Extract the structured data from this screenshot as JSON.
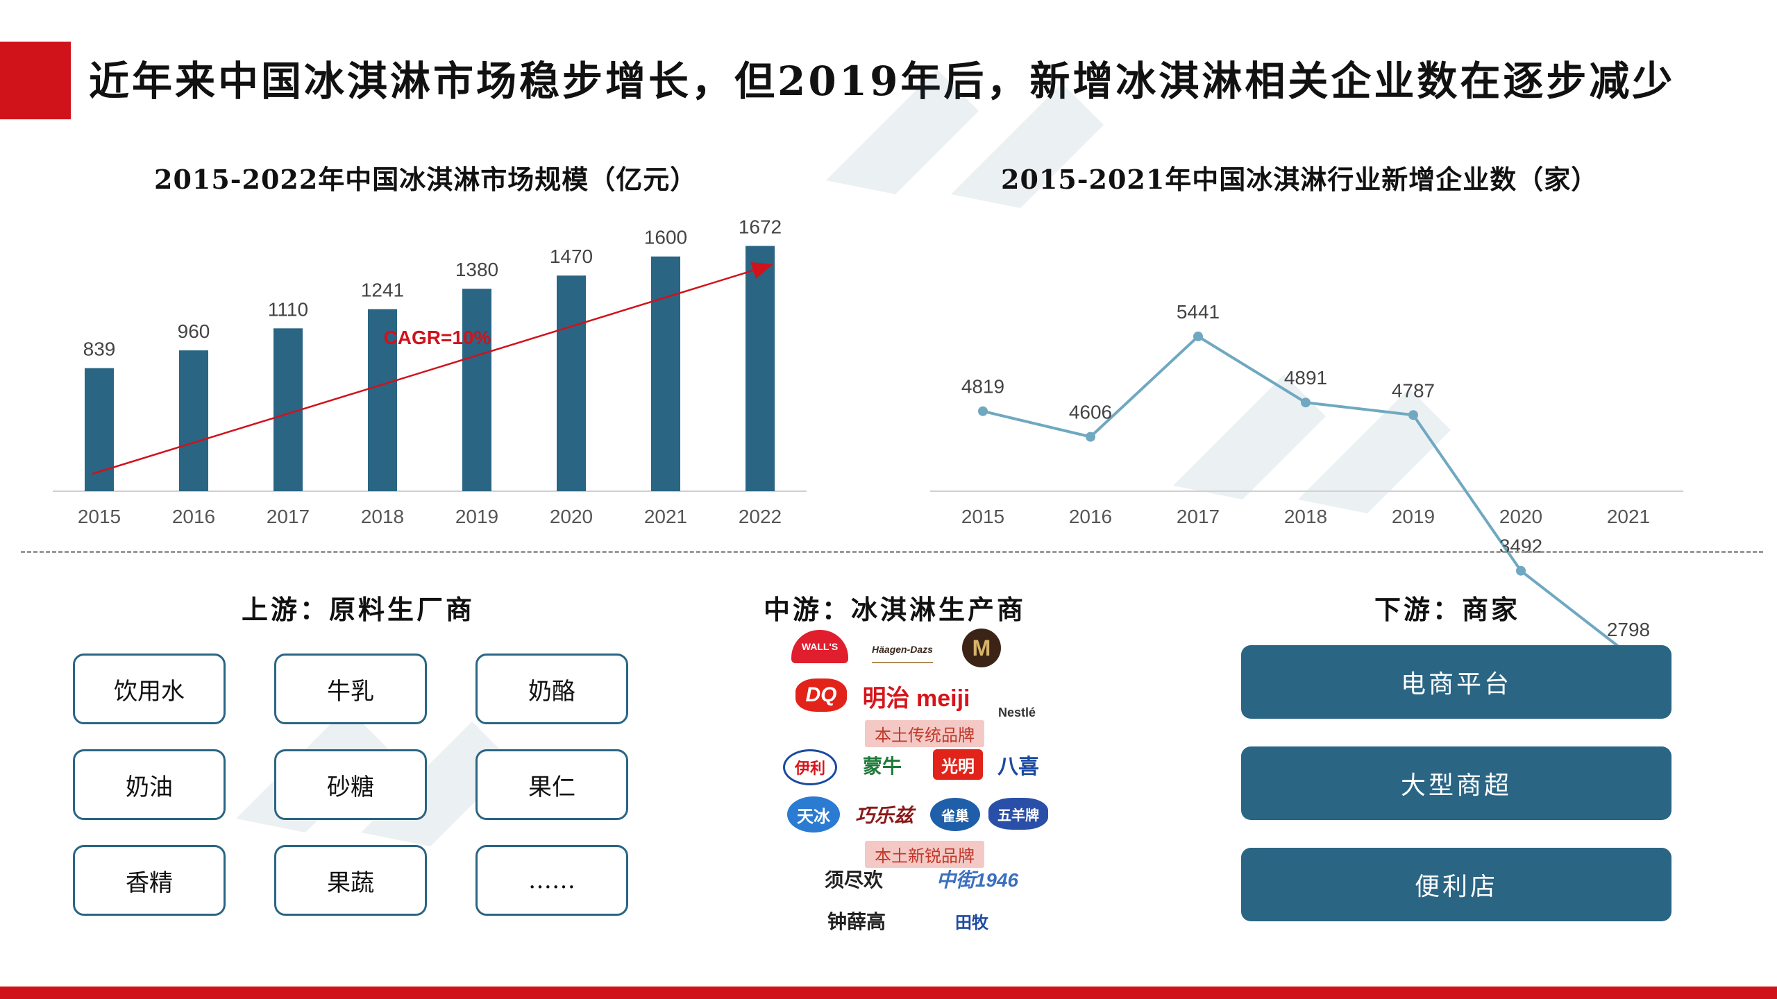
{
  "page": {
    "title": "近年来中国冰淇淋市场稳步增长，但2019年后，新增冰淇淋相关企业数在逐步减少"
  },
  "chart_data": [
    {
      "type": "bar",
      "title": "2015-2022年中国冰淇淋市场规模（亿元）",
      "categories": [
        "2015",
        "2016",
        "2017",
        "2018",
        "2019",
        "2020",
        "2021",
        "2022"
      ],
      "values": [
        839,
        960,
        1110,
        1241,
        1380,
        1470,
        1600,
        1672
      ],
      "annotation": "CAGR=10%",
      "ylim": [
        0,
        1750
      ],
      "color": "#2a6584",
      "annotation_color": "#d0121b"
    },
    {
      "type": "line",
      "title": "2015-2021年中国冰淇淋行业新增企业数（家）",
      "categories": [
        "2015",
        "2016",
        "2017",
        "2018",
        "2019",
        "2020",
        "2021"
      ],
      "values": [
        4819,
        4606,
        5441,
        4891,
        4787,
        3492,
        2798
      ],
      "ylim": [
        0,
        6000
      ],
      "color": "#6fa8c0"
    }
  ],
  "sections": {
    "upstream": {
      "heading": "上游：原料生厂商",
      "items": [
        "饮用水",
        "牛乳",
        "奶酪",
        "奶油",
        "砂糖",
        "果仁",
        "香精",
        "果蔬",
        "……"
      ]
    },
    "midstream": {
      "heading": "中游：冰淇淋生产商",
      "logos": [
        "WALL'S",
        "Häagen-Dazs",
        "M",
        "DQ",
        "明治 meiji",
        "Nestlé",
        "伊利",
        "蒙牛",
        "光明",
        "八喜",
        "天冰",
        "巧乐兹",
        "雀巢",
        "五羊牌",
        "须尽欢",
        "中街1946",
        "钟薛高",
        "田牧"
      ],
      "tags": [
        "本土传统品牌",
        "本土新锐品牌"
      ]
    },
    "downstream": {
      "heading": "下游：商家",
      "items": [
        "电商平台",
        "大型商超",
        "便利店"
      ]
    }
  },
  "colors": {
    "accent_red": "#d0121b",
    "bar_blue": "#2a6584",
    "line_blue": "#6fa8c0"
  }
}
